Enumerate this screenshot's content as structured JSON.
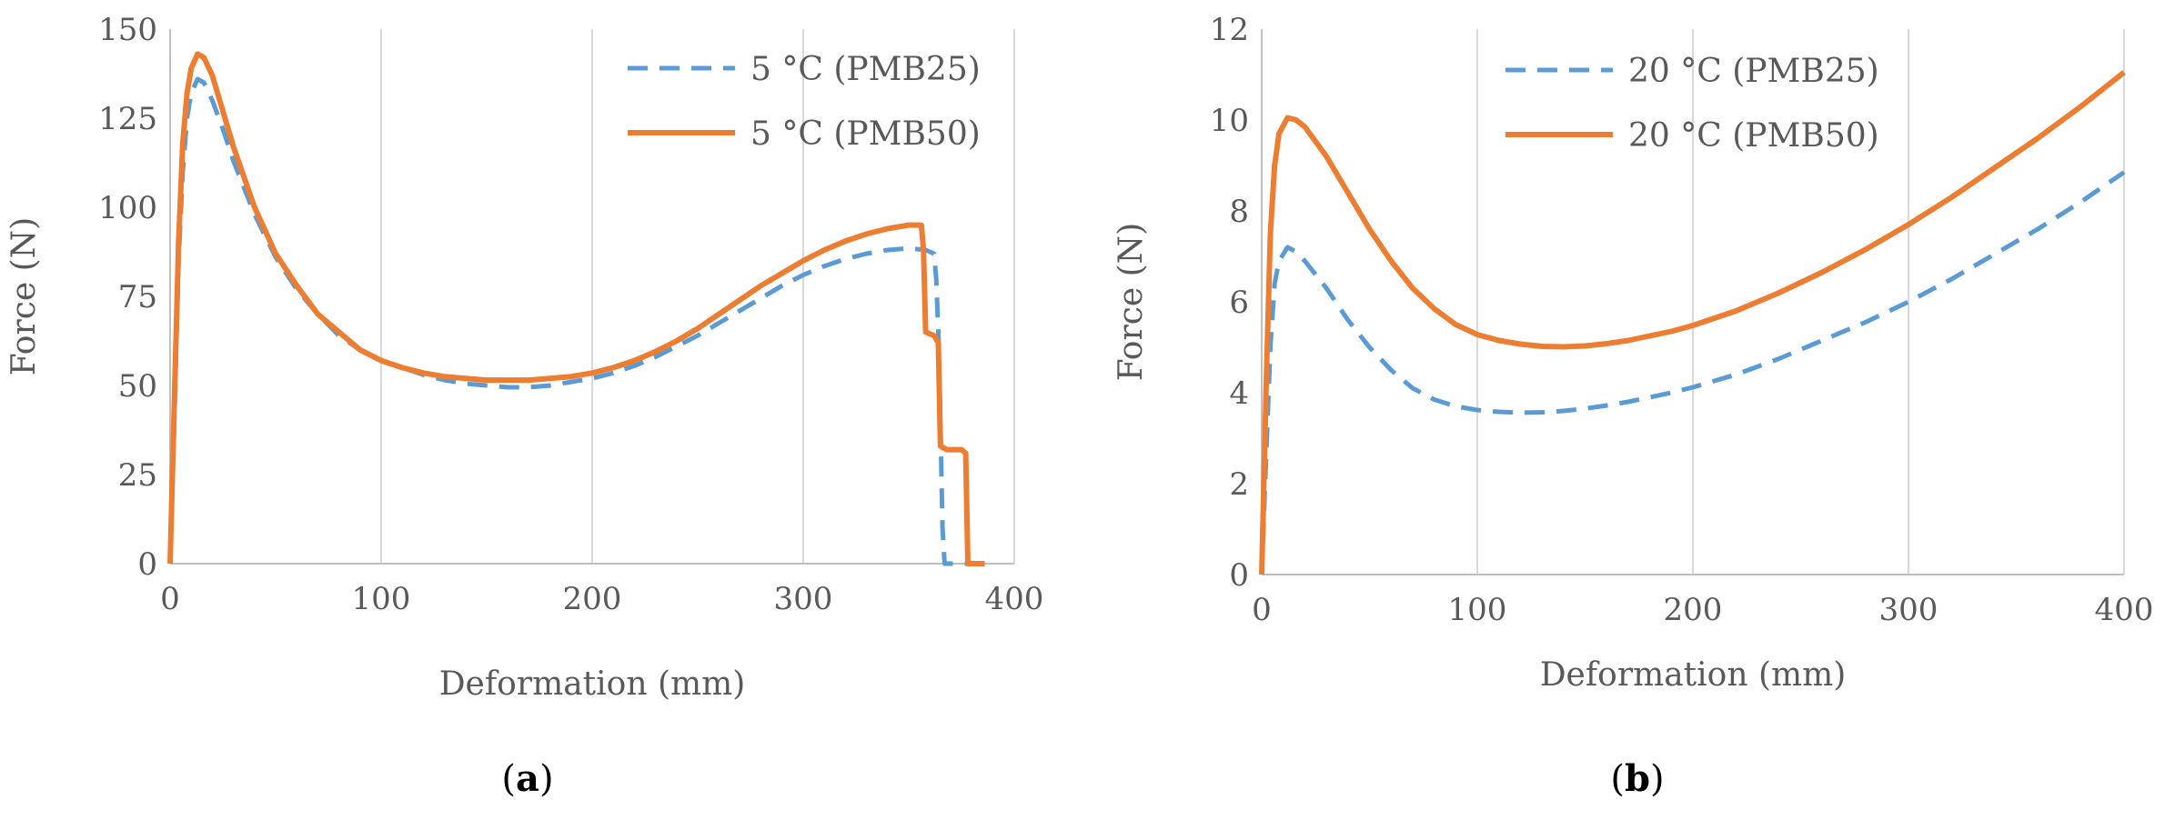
{
  "chart_data": [
    {
      "type": "line",
      "panel_label": "a",
      "title": "",
      "xlabel": "Deformation (mm)",
      "ylabel": "Force (N)",
      "xlim": [
        0,
        400
      ],
      "ylim": [
        0,
        150
      ],
      "xticks": [
        "0",
        "100",
        "200",
        "300",
        "400"
      ],
      "yticks": [
        "0",
        "25",
        "50",
        "75",
        "100",
        "125",
        "150"
      ],
      "grid": "vertical",
      "legend_position": "top-right",
      "series": [
        {
          "name": "5 °C (PMB25)",
          "color": "#5b9bd5",
          "dash": "dashed",
          "points": [
            [
              0,
              0
            ],
            [
              2,
              40
            ],
            [
              4,
              85
            ],
            [
              6,
              110
            ],
            [
              8,
              125
            ],
            [
              10,
              132
            ],
            [
              13,
              136
            ],
            [
              16,
              135
            ],
            [
              20,
              130
            ],
            [
              25,
              122
            ],
            [
              30,
              113
            ],
            [
              40,
              98
            ],
            [
              50,
              86
            ],
            [
              60,
              77
            ],
            [
              70,
              70
            ],
            [
              80,
              64
            ],
            [
              90,
              60
            ],
            [
              100,
              57
            ],
            [
              110,
              55
            ],
            [
              120,
              53
            ],
            [
              130,
              51.5
            ],
            [
              140,
              50.5
            ],
            [
              150,
              50
            ],
            [
              160,
              49.5
            ],
            [
              170,
              49.5
            ],
            [
              180,
              50
            ],
            [
              190,
              51
            ],
            [
              200,
              52
            ],
            [
              210,
              53.5
            ],
            [
              220,
              55.5
            ],
            [
              230,
              58
            ],
            [
              240,
              61
            ],
            [
              250,
              64
            ],
            [
              260,
              67.5
            ],
            [
              270,
              71
            ],
            [
              280,
              74.5
            ],
            [
              290,
              78
            ],
            [
              300,
              81
            ],
            [
              310,
              83.5
            ],
            [
              320,
              85.5
            ],
            [
              330,
              87
            ],
            [
              340,
              88
            ],
            [
              350,
              88.5
            ],
            [
              358,
              88
            ],
            [
              362,
              87
            ],
            [
              363,
              80
            ],
            [
              364,
              65
            ],
            [
              365,
              40
            ],
            [
              366,
              10
            ],
            [
              367,
              0
            ],
            [
              378,
              0
            ]
          ]
        },
        {
          "name": "5 °C (PMB50)",
          "color": "#ed7d31",
          "dash": "solid",
          "points": [
            [
              0,
              0
            ],
            [
              2,
              45
            ],
            [
              4,
              90
            ],
            [
              6,
              118
            ],
            [
              8,
              132
            ],
            [
              10,
              139
            ],
            [
              13,
              143
            ],
            [
              16,
              142
            ],
            [
              20,
              137
            ],
            [
              25,
              127
            ],
            [
              30,
              117
            ],
            [
              40,
              100
            ],
            [
              50,
              87
            ],
            [
              60,
              78
            ],
            [
              70,
              70
            ],
            [
              80,
              65
            ],
            [
              90,
              60
            ],
            [
              100,
              57
            ],
            [
              110,
              55
            ],
            [
              120,
              53.5
            ],
            [
              130,
              52.5
            ],
            [
              140,
              52
            ],
            [
              150,
              51.5
            ],
            [
              160,
              51.5
            ],
            [
              170,
              51.5
            ],
            [
              180,
              52
            ],
            [
              190,
              52.5
            ],
            [
              200,
              53.5
            ],
            [
              210,
              55
            ],
            [
              220,
              57
            ],
            [
              230,
              59.5
            ],
            [
              240,
              62.5
            ],
            [
              250,
              66
            ],
            [
              260,
              70
            ],
            [
              270,
              74
            ],
            [
              280,
              78
            ],
            [
              290,
              81.5
            ],
            [
              300,
              85
            ],
            [
              310,
              88
            ],
            [
              320,
              90.5
            ],
            [
              330,
              92.5
            ],
            [
              340,
              94
            ],
            [
              350,
              95
            ],
            [
              356,
              95
            ],
            [
              357,
              88
            ],
            [
              358,
              65
            ],
            [
              362,
              64
            ],
            [
              364,
              62
            ],
            [
              365,
              33
            ],
            [
              368,
              32
            ],
            [
              375,
              32
            ],
            [
              377,
              31
            ],
            [
              378,
              0
            ],
            [
              386,
              0
            ]
          ]
        }
      ]
    },
    {
      "type": "line",
      "panel_label": "b",
      "title": "",
      "xlabel": "Deformation (mm)",
      "ylabel": "Force (N)",
      "xlim": [
        0,
        400
      ],
      "ylim": [
        0,
        12
      ],
      "xticks": [
        "0",
        "100",
        "200",
        "300",
        "400"
      ],
      "yticks": [
        "0",
        "2",
        "4",
        "6",
        "8",
        "10",
        "12"
      ],
      "grid": "vertical",
      "legend_position": "top-center",
      "series": [
        {
          "name": "20 °C (PMB25)",
          "color": "#5b9bd5",
          "dash": "dashed",
          "points": [
            [
              0,
              0
            ],
            [
              2,
              2.5
            ],
            [
              4,
              5
            ],
            [
              6,
              6.4
            ],
            [
              8,
              6.9
            ],
            [
              12,
              7.2
            ],
            [
              16,
              7.1
            ],
            [
              20,
              6.9
            ],
            [
              30,
              6.3
            ],
            [
              40,
              5.6
            ],
            [
              50,
              5
            ],
            [
              60,
              4.5
            ],
            [
              70,
              4.1
            ],
            [
              80,
              3.85
            ],
            [
              90,
              3.7
            ],
            [
              100,
              3.62
            ],
            [
              110,
              3.58
            ],
            [
              120,
              3.56
            ],
            [
              130,
              3.57
            ],
            [
              140,
              3.6
            ],
            [
              150,
              3.65
            ],
            [
              160,
              3.72
            ],
            [
              170,
              3.8
            ],
            [
              180,
              3.9
            ],
            [
              190,
              4.0
            ],
            [
              200,
              4.12
            ],
            [
              220,
              4.4
            ],
            [
              240,
              4.75
            ],
            [
              260,
              5.15
            ],
            [
              280,
              5.55
            ],
            [
              300,
              6.0
            ],
            [
              320,
              6.5
            ],
            [
              340,
              7.05
            ],
            [
              360,
              7.6
            ],
            [
              380,
              8.2
            ],
            [
              400,
              8.85
            ]
          ]
        },
        {
          "name": "20 °C (PMB50)",
          "color": "#ed7d31",
          "dash": "solid",
          "points": [
            [
              0,
              0
            ],
            [
              2,
              4
            ],
            [
              4,
              7.5
            ],
            [
              6,
              9.0
            ],
            [
              8,
              9.7
            ],
            [
              12,
              10.05
            ],
            [
              16,
              10.0
            ],
            [
              20,
              9.85
            ],
            [
              30,
              9.2
            ],
            [
              40,
              8.4
            ],
            [
              50,
              7.6
            ],
            [
              60,
              6.9
            ],
            [
              70,
              6.3
            ],
            [
              80,
              5.85
            ],
            [
              90,
              5.5
            ],
            [
              100,
              5.28
            ],
            [
              110,
              5.15
            ],
            [
              120,
              5.07
            ],
            [
              130,
              5.02
            ],
            [
              140,
              5.01
            ],
            [
              150,
              5.03
            ],
            [
              160,
              5.08
            ],
            [
              170,
              5.15
            ],
            [
              180,
              5.25
            ],
            [
              190,
              5.35
            ],
            [
              200,
              5.48
            ],
            [
              220,
              5.8
            ],
            [
              240,
              6.2
            ],
            [
              260,
              6.65
            ],
            [
              280,
              7.15
            ],
            [
              300,
              7.7
            ],
            [
              320,
              8.3
            ],
            [
              340,
              8.95
            ],
            [
              360,
              9.6
            ],
            [
              380,
              10.3
            ],
            [
              400,
              11.05
            ]
          ]
        }
      ]
    }
  ]
}
